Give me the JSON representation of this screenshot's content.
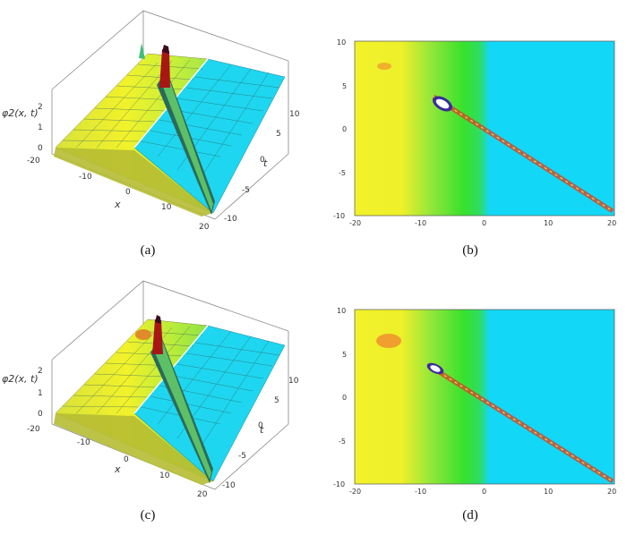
{
  "figure": {
    "panels": [
      {
        "id": "a",
        "type": "surface3d",
        "caption": "(a)",
        "zlabel": "φ2(x, t)",
        "xlabel": "x",
        "tlabel": "t",
        "x_ticks": [
          "-20",
          "-10",
          "0",
          "10",
          "20"
        ],
        "t_ticks": [
          "-10",
          "-5",
          "0",
          "5",
          "10"
        ],
        "z_ticks": [
          "0",
          "1",
          "2"
        ]
      },
      {
        "id": "b",
        "type": "density",
        "caption": "(b)",
        "x_ticks": [
          "-20",
          "-10",
          "0",
          "10",
          "20"
        ],
        "y_ticks": [
          "-10",
          "-5",
          "0",
          "5",
          "10"
        ]
      },
      {
        "id": "c",
        "type": "surface3d",
        "caption": "(c)",
        "zlabel": "φ2(x, t)",
        "xlabel": "x",
        "tlabel": "t",
        "x_ticks": [
          "-20",
          "-10",
          "0",
          "10",
          "20"
        ],
        "t_ticks": [
          "-10",
          "-5",
          "0",
          "5",
          "10"
        ],
        "z_ticks": [
          "0",
          "1",
          "2"
        ]
      },
      {
        "id": "d",
        "type": "density",
        "caption": "(d)",
        "x_ticks": [
          "-20",
          "-10",
          "0",
          "10",
          "20"
        ],
        "y_ticks": [
          "-10",
          "-5",
          "0",
          "5",
          "10"
        ]
      }
    ],
    "colors": {
      "yellow": "#f2f22a",
      "green": "#37e12d",
      "cyan": "#13d7f6",
      "peak_red": "#b01818",
      "peak_dark": "#3a0c20",
      "ridge_dark": "#2a2050"
    }
  }
}
